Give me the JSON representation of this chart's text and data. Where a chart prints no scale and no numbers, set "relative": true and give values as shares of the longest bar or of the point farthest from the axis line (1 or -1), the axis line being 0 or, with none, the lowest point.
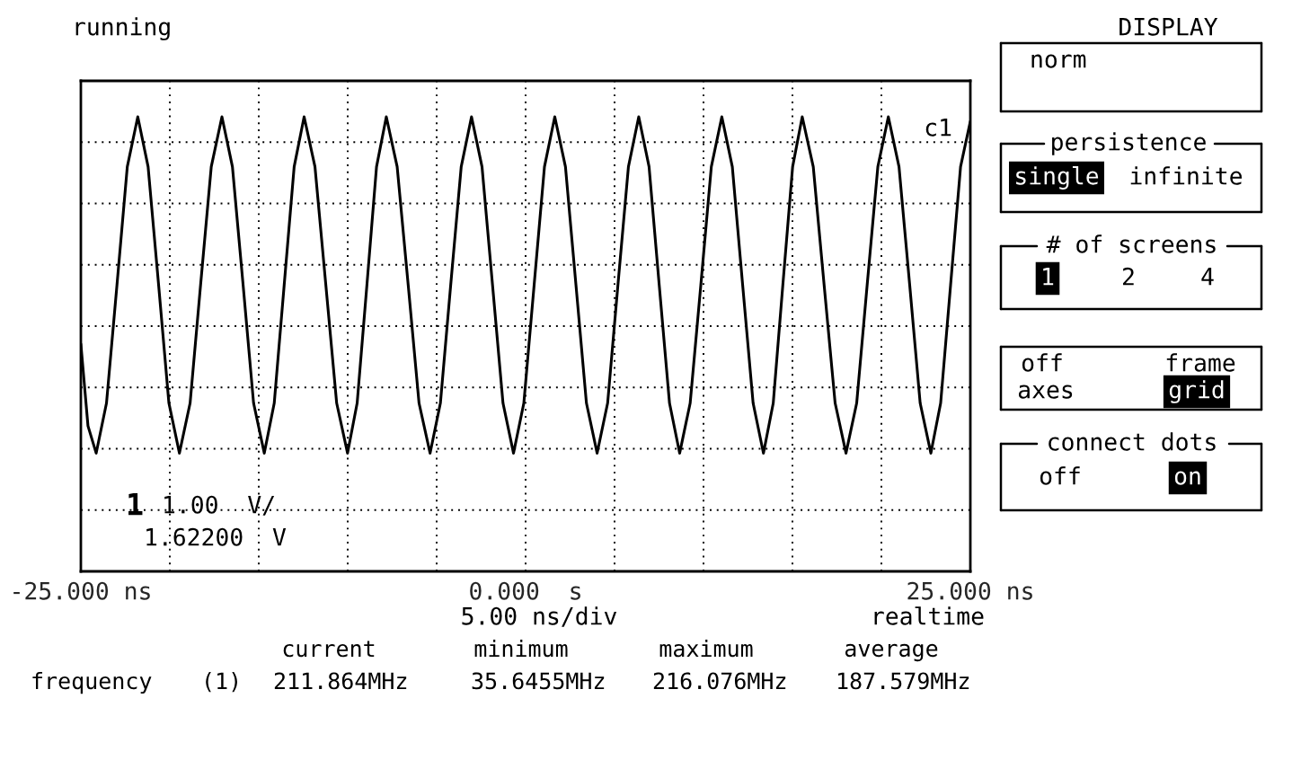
{
  "chart_data": {
    "type": "line",
    "relative": true,
    "grid": true,
    "xlim": [
      -25,
      25
    ],
    "xticks": [
      {
        "value": -25,
        "label": "-25.000 ns"
      },
      {
        "value": -20,
        "label": null
      },
      {
        "value": -15,
        "label": null
      },
      {
        "value": -10,
        "label": null
      },
      {
        "value": -5,
        "label": null
      },
      {
        "value": 0,
        "label": "0.000  s"
      },
      {
        "value": 5,
        "label": null
      },
      {
        "value": 10,
        "label": null
      },
      {
        "value": 15,
        "label": null
      },
      {
        "value": 20,
        "label": null
      },
      {
        "value": 25,
        "label": "25.000 ns"
      }
    ],
    "series": [
      {
        "color": "#000000",
        "x": [
          -25,
          -24.6,
          -24.14,
          -23.56,
          -22.97,
          -22.39,
          -21.8,
          -21.22,
          -20.63,
          -20.05,
          -19.46,
          -18.86,
          -18.27,
          -17.67,
          -17.07,
          -16.48,
          -15.88,
          -15.29,
          -14.69,
          -14.13,
          -13.57,
          -13.01,
          -12.45,
          -11.84,
          -11.23,
          -10.62,
          -10.01,
          -9.47,
          -8.92,
          -8.38,
          -7.83,
          -7.22,
          -6.6,
          -5.99,
          -5.37,
          -4.79,
          -4.21,
          -3.62,
          -3.04,
          -2.45,
          -1.86,
          -1.27,
          -0.68,
          -0.1,
          0.48,
          1.06,
          1.64,
          2.24,
          2.83,
          3.42,
          4.02,
          4.61,
          5.19,
          5.78,
          6.36,
          6.94,
          7.51,
          8.09,
          8.66,
          9.25,
          9.85,
          10.44,
          11.03,
          11.62,
          12.2,
          12.79,
          13.37,
          13.92,
          14.46,
          15.01,
          15.55,
          16.17,
          16.78,
          17.4,
          18.01,
          18.61,
          19.2,
          19.8,
          20.39,
          20.99,
          21.59,
          22.18,
          22.78,
          23.33,
          23.89,
          24.45,
          25
        ],
        "values": [
          0.5,
          0.32,
          0.26,
          0.37,
          0.63,
          0.89,
          1,
          0.89,
          0.63,
          0.37,
          0.26,
          0.37,
          0.63,
          0.89,
          1,
          0.89,
          0.63,
          0.37,
          0.26,
          0.37,
          0.63,
          0.89,
          1,
          0.89,
          0.63,
          0.37,
          0.26,
          0.37,
          0.63,
          0.89,
          1,
          0.89,
          0.63,
          0.37,
          0.26,
          0.37,
          0.63,
          0.89,
          1,
          0.89,
          0.63,
          0.37,
          0.26,
          0.37,
          0.63,
          0.89,
          1,
          0.89,
          0.63,
          0.37,
          0.26,
          0.37,
          0.63,
          0.89,
          1,
          0.89,
          0.63,
          0.37,
          0.26,
          0.37,
          0.63,
          0.89,
          1,
          0.89,
          0.63,
          0.37,
          0.26,
          0.37,
          0.63,
          0.89,
          1,
          0.89,
          0.63,
          0.37,
          0.26,
          0.37,
          0.63,
          0.89,
          1,
          0.89,
          0.63,
          0.37,
          0.26,
          0.37,
          0.63,
          0.89,
          0.99
        ]
      }
    ],
    "annotations": [
      "running",
      "c1",
      "1",
      "1.00  V/",
      "1.62200  V",
      "5.00 ns/div",
      "realtime",
      "current",
      "minimum",
      "maximum",
      "average",
      "frequency",
      "(1)",
      "211.864MHz",
      "35.6455MHz",
      "216.076MHz",
      "187.579MHz",
      "DISPLAY",
      "norm",
      "persistence",
      "single",
      "infinite",
      "# of screens",
      "1",
      "2",
      "4",
      "off",
      "frame",
      "axes",
      "grid",
      "connect dots",
      "off",
      "on"
    ]
  }
}
